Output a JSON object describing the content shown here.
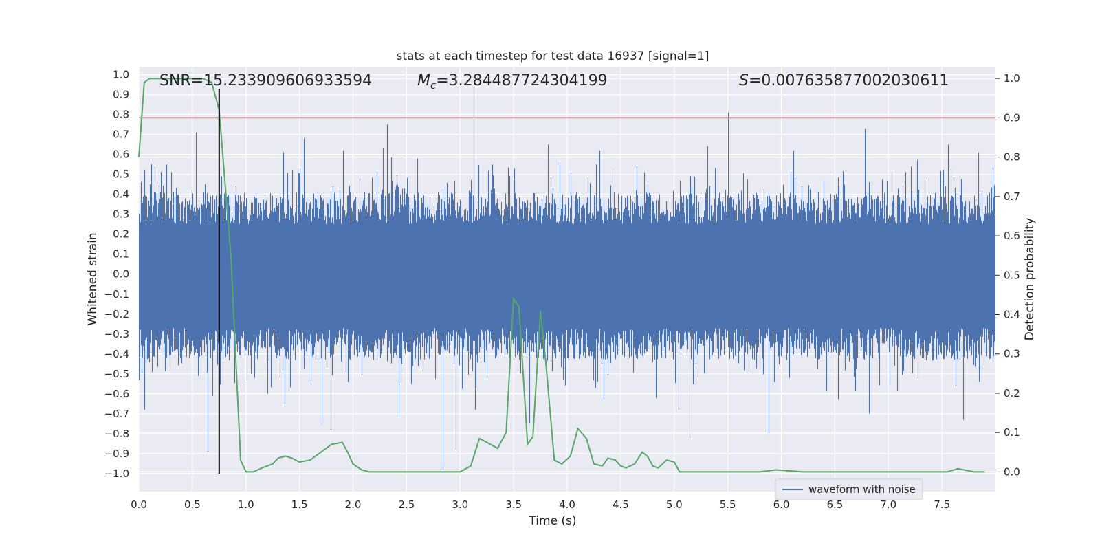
{
  "chart_data": {
    "type": "line",
    "title": "stats at each timestep for test data 16937 [signal=1]",
    "xlabel": "Time (s)",
    "ylabel_left": "Whitened strain",
    "ylabel_right": "Detection probability",
    "xlim": [
      0.0,
      8.0
    ],
    "ylim_left": [
      -1.09,
      1.04
    ],
    "ylim_right": [
      -0.05,
      1.03
    ],
    "x_ticks": [
      "0.0",
      "0.5",
      "1.0",
      "1.5",
      "2.0",
      "2.5",
      "3.0",
      "3.5",
      "4.0",
      "4.5",
      "5.0",
      "5.5",
      "6.0",
      "6.5",
      "7.0",
      "7.5"
    ],
    "y_left_ticks": [
      "1.0",
      "0.9",
      "0.8",
      "0.7",
      "0.6",
      "0.5",
      "0.4",
      "0.3",
      "0.2",
      "0.1",
      "0.0",
      "−0.1",
      "−0.2",
      "−0.3",
      "−0.4",
      "−0.5",
      "−0.6",
      "−0.7",
      "−0.8",
      "−0.9",
      "−1.0"
    ],
    "y_right_ticks": [
      "0.0",
      "0.1",
      "0.2",
      "0.3",
      "0.4",
      "0.5",
      "0.6",
      "0.7",
      "0.8",
      "0.9",
      "1.0"
    ],
    "grid": true,
    "legend_position": "lower-right",
    "annotations": {
      "snr": "SNR=15.233909606933594",
      "mc_symbol": "M",
      "mc_sub": "c",
      "mc_value": "=3.284487724304199",
      "s_symbol": "S",
      "s_value": "=0.007635877002030611"
    },
    "threshold_right": 0.9,
    "marker_time": 0.75,
    "series": [
      {
        "name": "waveform with noise",
        "color": "#4c72b0",
        "axis": "left",
        "fs_hz": 2048,
        "duration_s": 8.0,
        "envelope_pos_typical": 0.33,
        "envelope_neg_typical": -0.35,
        "spikes": [
          [
            0.02,
            0.48
          ],
          [
            0.14,
            0.52
          ],
          [
            0.33,
            0.54
          ],
          [
            0.52,
            0.55
          ],
          [
            0.52,
            0.53
          ],
          [
            0.52,
            0.56
          ],
          [
            0.52,
            0.55
          ],
          [
            0.52,
            0.54
          ],
          [
            0.52,
            0.53
          ],
          [
            0.52,
            0.56
          ],
          [
            0.52,
            0.55
          ],
          [
            0.52,
            0.54
          ],
          [
            0.52,
            0.53
          ],
          [
            0.52,
            0.55
          ],
          [
            0.52,
            0.56
          ],
          [
            0.52,
            0.54
          ],
          [
            0.52,
            0.53
          ],
          [
            0.52,
            0.55
          ],
          [
            0.52,
            0.54
          ],
          [
            0.52,
            0.56
          ],
          [
            0.52,
            0.55
          ],
          [
            0.52,
            0.53
          ],
          [
            0.52,
            0.54
          ],
          [
            0.52,
            0.55
          ],
          [
            0.52,
            0.56
          ],
          [
            0.52,
            0.54
          ],
          [
            0.52,
            0.53
          ],
          [
            0.52,
            0.55
          ],
          [
            0.52,
            0.54
          ],
          [
            0.52,
            0.56
          ]
        ],
        "peaks": [
          [
            0.05,
            -0.68
          ],
          [
            0.26,
            0.55
          ],
          [
            0.53,
            0.71
          ],
          [
            0.64,
            -0.89
          ],
          [
            0.69,
            -0.61
          ],
          [
            1.08,
            -0.52
          ],
          [
            1.2,
            -0.6
          ],
          [
            1.35,
            0.61
          ],
          [
            1.36,
            -0.65
          ],
          [
            1.54,
            0.68
          ],
          [
            1.71,
            -0.75
          ],
          [
            1.79,
            -0.78
          ],
          [
            1.91,
            0.62
          ],
          [
            2.28,
            0.63
          ],
          [
            2.32,
            0.75
          ],
          [
            2.43,
            -0.72
          ],
          [
            2.6,
            0.58
          ],
          [
            2.84,
            -0.98
          ],
          [
            2.96,
            -0.88
          ],
          [
            3.13,
            0.94
          ],
          [
            3.14,
            -0.68
          ],
          [
            3.3,
            0.55
          ],
          [
            3.65,
            -0.75
          ],
          [
            3.82,
            0.65
          ],
          [
            4.3,
            0.62
          ],
          [
            4.34,
            -0.63
          ],
          [
            4.65,
            0.54
          ],
          [
            4.83,
            -0.62
          ],
          [
            5.04,
            -0.68
          ],
          [
            5.14,
            -0.82
          ],
          [
            5.31,
            0.64
          ],
          [
            5.5,
            0.81
          ],
          [
            5.88,
            -0.8
          ],
          [
            6.11,
            0.62
          ],
          [
            6.53,
            -0.63
          ],
          [
            6.58,
            0.5
          ],
          [
            6.78,
            0.73
          ],
          [
            6.82,
            -0.7
          ],
          [
            7.27,
            0.57
          ],
          [
            7.56,
            0.65
          ],
          [
            7.7,
            -0.73
          ],
          [
            7.84,
            0.61
          ]
        ]
      },
      {
        "name": "",
        "color": "#55a868",
        "axis": "right",
        "x": [
          0.0,
          0.05,
          0.1,
          0.2,
          0.3,
          0.4,
          0.5,
          0.6,
          0.68,
          0.75,
          0.8,
          0.86,
          0.95,
          1.0,
          1.07,
          1.15,
          1.25,
          1.3,
          1.37,
          1.43,
          1.5,
          1.6,
          1.65,
          1.7,
          1.8,
          1.9,
          1.95,
          2.0,
          2.08,
          2.15,
          2.25,
          2.4,
          2.55,
          2.65,
          2.8,
          2.9,
          3.0,
          3.1,
          3.18,
          3.25,
          3.35,
          3.43,
          3.5,
          3.55,
          3.63,
          3.68,
          3.75,
          3.8,
          3.88,
          3.95,
          4.03,
          4.1,
          4.18,
          4.25,
          4.33,
          4.38,
          4.45,
          4.5,
          4.55,
          4.63,
          4.7,
          4.75,
          4.8,
          4.85,
          4.93,
          5.0,
          5.05,
          5.13,
          5.3,
          5.6,
          5.8,
          5.95,
          6.2,
          6.5,
          6.8,
          7.0,
          7.3,
          7.55,
          7.65,
          7.8,
          7.9
        ],
        "y": [
          0.8,
          0.99,
          1.0,
          1.0,
          1.0,
          1.0,
          1.0,
          1.0,
          0.99,
          0.92,
          0.75,
          0.55,
          0.03,
          0.0,
          0.0,
          0.01,
          0.02,
          0.035,
          0.04,
          0.035,
          0.025,
          0.03,
          0.04,
          0.05,
          0.07,
          0.075,
          0.05,
          0.02,
          0.005,
          0.0,
          0.0,
          0.0,
          0.0,
          0.0,
          0.0,
          0.0,
          0.0,
          0.015,
          0.085,
          0.075,
          0.06,
          0.1,
          0.44,
          0.42,
          0.07,
          0.09,
          0.41,
          0.28,
          0.03,
          0.02,
          0.04,
          0.11,
          0.085,
          0.02,
          0.015,
          0.035,
          0.03,
          0.015,
          0.01,
          0.02,
          0.05,
          0.04,
          0.015,
          0.01,
          0.03,
          0.025,
          0.0,
          0.0,
          0.0,
          0.0,
          0.0,
          0.005,
          0.0,
          0.0,
          0.0,
          0.0,
          0.0,
          0.0,
          0.008,
          0.0,
          0.0
        ]
      }
    ]
  }
}
